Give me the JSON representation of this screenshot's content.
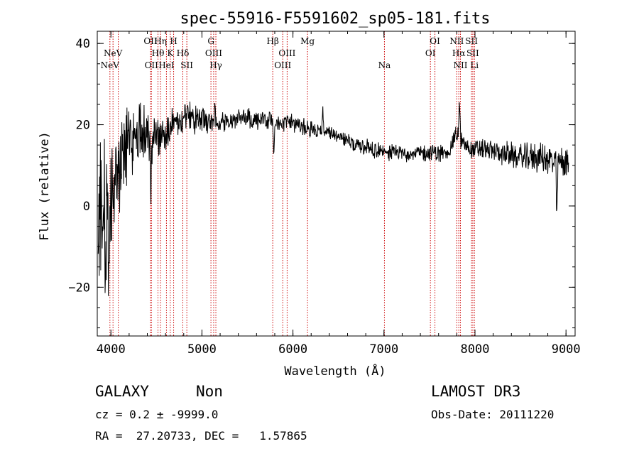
{
  "chart_data": {
    "type": "line",
    "title": "spec-55916-F5591602_sp05-181.fits",
    "xlabel": "Wavelength (Å)",
    "ylabel": "Flux (relative)",
    "xlim": [
      3850,
      9100
    ],
    "ylim": [
      -32,
      43
    ],
    "x_ticks": [
      4000,
      5000,
      6000,
      7000,
      8000,
      9000
    ],
    "x_tick_labels": [
      "4000",
      "5000",
      "6000",
      "7000",
      "8000",
      "9000"
    ],
    "y_ticks": [
      -20,
      0,
      20,
      40
    ],
    "y_tick_labels": [
      "−20",
      "0",
      "20",
      "40"
    ],
    "grid": false,
    "line_color": "#000000",
    "marker_color": "#cc0000",
    "lines": [
      {
        "x": 3989,
        "label": "NeV",
        "row": 3
      },
      {
        "x": 4023,
        "label": "NeV",
        "row": 2
      },
      {
        "x": 4081,
        "label": "",
        "row": 0
      },
      {
        "x": 4435,
        "label": "OII",
        "row": 1
      },
      {
        "x": 4445,
        "label": "OII",
        "row": 3
      },
      {
        "x": 4517,
        "label": "Hθ",
        "row": 2
      },
      {
        "x": 4545,
        "label": "Hη",
        "row": 1
      },
      {
        "x": 4610,
        "label": "HeI",
        "row": 3
      },
      {
        "x": 4652,
        "label": "K",
        "row": 2
      },
      {
        "x": 4689,
        "label": "H",
        "row": 1
      },
      {
        "x": 4790,
        "label": "Hδ",
        "row": 2
      },
      {
        "x": 4834,
        "label": "SII",
        "row": 3
      },
      {
        "x": 5099,
        "label": "G",
        "row": 1
      },
      {
        "x": 5129,
        "label": "OIII",
        "row": 2
      },
      {
        "x": 5153,
        "label": "Hγ",
        "row": 3
      },
      {
        "x": 5778,
        "label": "Hβ",
        "row": 1
      },
      {
        "x": 5888,
        "label": "OIII",
        "row": 3
      },
      {
        "x": 5936,
        "label": "OIII",
        "row": 2
      },
      {
        "x": 6160,
        "label": "Mg",
        "row": 1
      },
      {
        "x": 7005,
        "label": "Na",
        "row": 3
      },
      {
        "x": 7510,
        "label": "OI",
        "row": 2
      },
      {
        "x": 7560,
        "label": "OI",
        "row": 1
      },
      {
        "x": 7800,
        "label": "NII",
        "row": 1
      },
      {
        "x": 7822,
        "label": "Hα",
        "row": 2
      },
      {
        "x": 7840,
        "label": "NII",
        "row": 3
      },
      {
        "x": 7962,
        "label": "SII",
        "row": 1
      },
      {
        "x": 7976,
        "label": "SII",
        "row": 2
      },
      {
        "x": 7994,
        "label": "Li",
        "row": 3
      }
    ],
    "spectrum_anchors": {
      "x": [
        3870,
        3950,
        4050,
        4150,
        4250,
        4350,
        4450,
        4550,
        4650,
        4750,
        4850,
        4950,
        5050,
        5150,
        5300,
        5450,
        5600,
        5750,
        5850,
        5950,
        6050,
        6200,
        6350,
        6500,
        6700,
        6900,
        7100,
        7300,
        7500,
        7700,
        7800,
        7850,
        7950,
        8100,
        8300,
        8500,
        8700,
        8850,
        9000
      ],
      "y": [
        -3,
        0,
        6,
        14,
        17,
        18,
        16,
        17,
        20,
        21,
        22,
        21,
        21,
        20,
        21,
        22,
        21,
        21,
        20,
        21,
        20,
        19,
        18,
        17,
        15,
        14,
        13,
        13,
        13,
        13,
        18,
        16,
        14,
        14,
        13,
        12,
        12,
        11,
        11
      ]
    },
    "spectrum_noise_anchors": {
      "x": [
        3850,
        4000,
        4300,
        4500,
        4900,
        5200,
        6500,
        8000,
        8800,
        9100
      ],
      "y": [
        15,
        10,
        6,
        4,
        3,
        2,
        1.5,
        1.8,
        3,
        4
      ]
    },
    "spectrum_features": [
      {
        "x": 3940,
        "dy": -22
      },
      {
        "x": 3975,
        "dy": -20
      },
      {
        "x": 4440,
        "dy": -14
      },
      {
        "x": 5140,
        "dy": 6
      },
      {
        "x": 5790,
        "dy": -9
      },
      {
        "x": 6330,
        "dy": 6
      },
      {
        "x": 7830,
        "dy": 9
      },
      {
        "x": 8900,
        "dy": -16
      }
    ]
  },
  "info": {
    "object_type": "GALAXY",
    "subclass": "Non",
    "survey": "LAMOST DR3",
    "cz_line": "cz = 0.2 ± -9999.0",
    "obs_date": "Obs-Date: 20111220",
    "coords": "RA =  27.20733, DEC =   1.57865"
  }
}
